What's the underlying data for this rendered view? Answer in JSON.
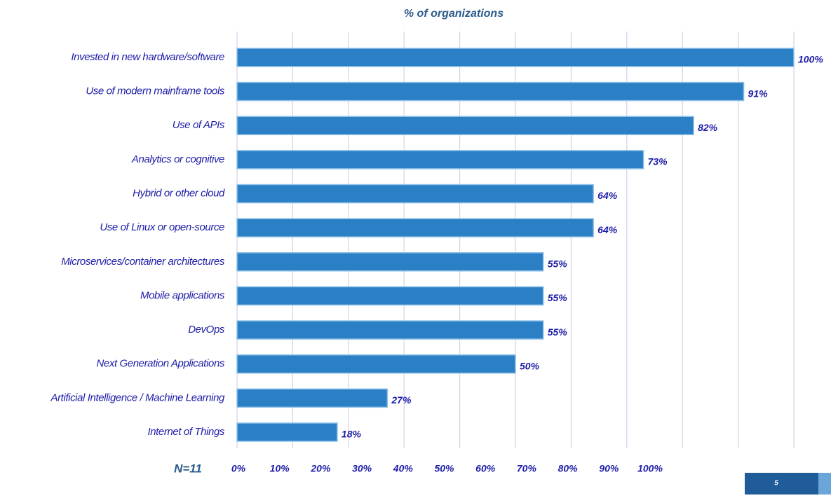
{
  "chart_data": {
    "type": "bar",
    "orientation": "horizontal",
    "title": "% of organizations",
    "categories": [
      "Invested in new hardware/software",
      "Use of modern mainframe tools",
      "Use of APIs",
      "Analytics or cognitive",
      "Hybrid or other cloud",
      "Use of Linux or open-source",
      "Microservices/container architectures",
      "Mobile applications",
      "DevOps",
      "Next Generation Applications",
      "Artificial Intelligence / Machine Learning",
      "Internet of Things"
    ],
    "values": [
      100,
      91,
      82,
      73,
      64,
      64,
      55,
      55,
      55,
      50,
      27,
      18
    ],
    "value_labels": [
      "100%",
      "91%",
      "82%",
      "73%",
      "64%",
      "64%",
      "55%",
      "55%",
      "55%",
      "50%",
      "27%",
      "18%"
    ],
    "color": "#2b80c5",
    "xlim": [
      0,
      100
    ],
    "xticks": [
      {
        "value": 0,
        "label": "0%"
      },
      {
        "value": 10,
        "label": "10%"
      },
      {
        "value": 20,
        "label": "20%"
      },
      {
        "value": 30,
        "label": "30%"
      },
      {
        "value": 40,
        "label": "40%"
      },
      {
        "value": 50,
        "label": "50%"
      },
      {
        "value": 60,
        "label": "60%"
      },
      {
        "value": 70,
        "label": "70%"
      },
      {
        "value": 80,
        "label": "80%"
      },
      {
        "value": 90,
        "label": "90%"
      },
      {
        "value": 100,
        "label": "100%"
      }
    ],
    "grid": true,
    "note": "N=11"
  },
  "page_number": "5"
}
